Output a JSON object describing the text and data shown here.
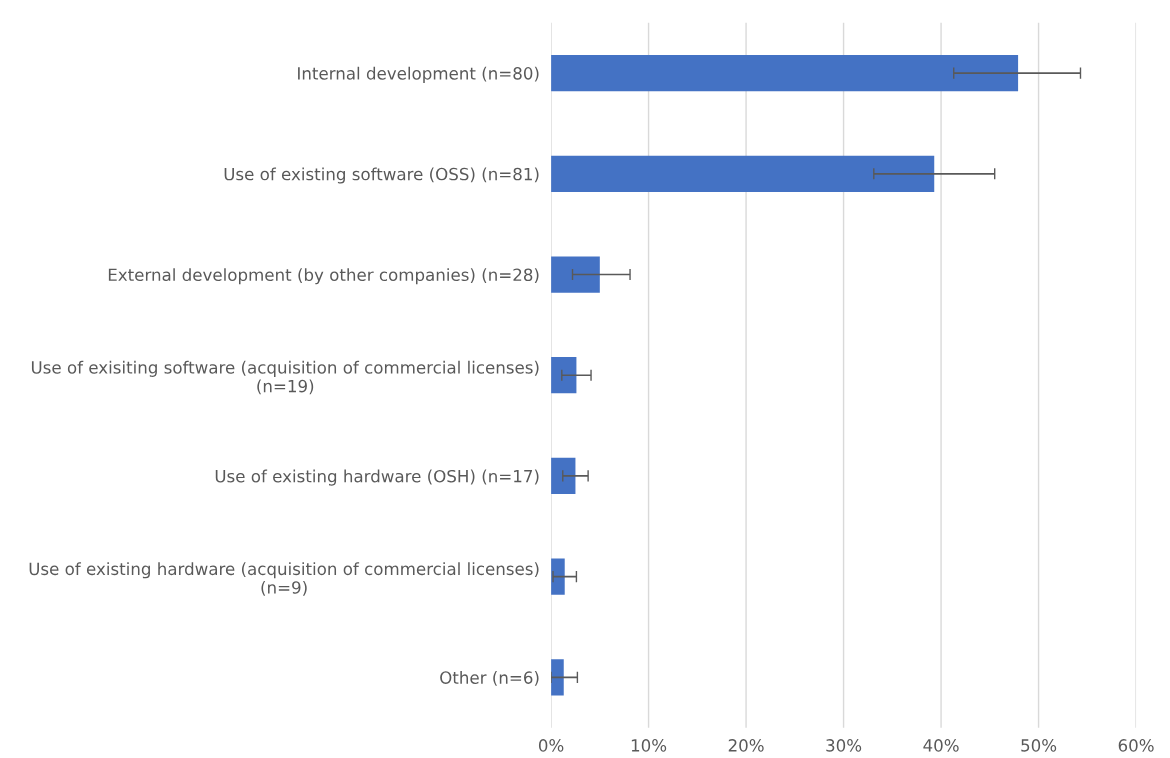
{
  "chart_data": {
    "type": "bar",
    "orientation": "horizontal",
    "categories": [
      "Internal development (n=80)",
      "Use of existing software (OSS) (n=81)",
      "External development (by other companies) (n=28)",
      "Use of exisiting software (acquisition of commercial licenses)\n(n=19)",
      "Use of existing hardware (OSH) (n=17)",
      "Use of existing hardware (acquisition of commercial licenses)\n(n=9)",
      "Other (n=6)"
    ],
    "values": [
      47.9,
      39.3,
      5.0,
      2.6,
      2.5,
      1.4,
      1.3
    ],
    "errors": [
      [
        41.3,
        54.3
      ],
      [
        33.1,
        45.5
      ],
      [
        2.2,
        8.1
      ],
      [
        1.1,
        4.1
      ],
      [
        1.2,
        3.8
      ],
      [
        0.2,
        2.6
      ],
      [
        0.0,
        2.7
      ]
    ],
    "color": "#4472c4",
    "xlim": [
      0,
      60
    ],
    "xticks": [
      {
        "value": 0,
        "label": "0%"
      },
      {
        "value": 10,
        "label": "10%"
      },
      {
        "value": 20,
        "label": "20%"
      },
      {
        "value": 30,
        "label": "30%"
      },
      {
        "value": 40,
        "label": "40%"
      },
      {
        "value": 50,
        "label": "50%"
      },
      {
        "value": 60,
        "label": "60%"
      }
    ],
    "grid": "x"
  }
}
